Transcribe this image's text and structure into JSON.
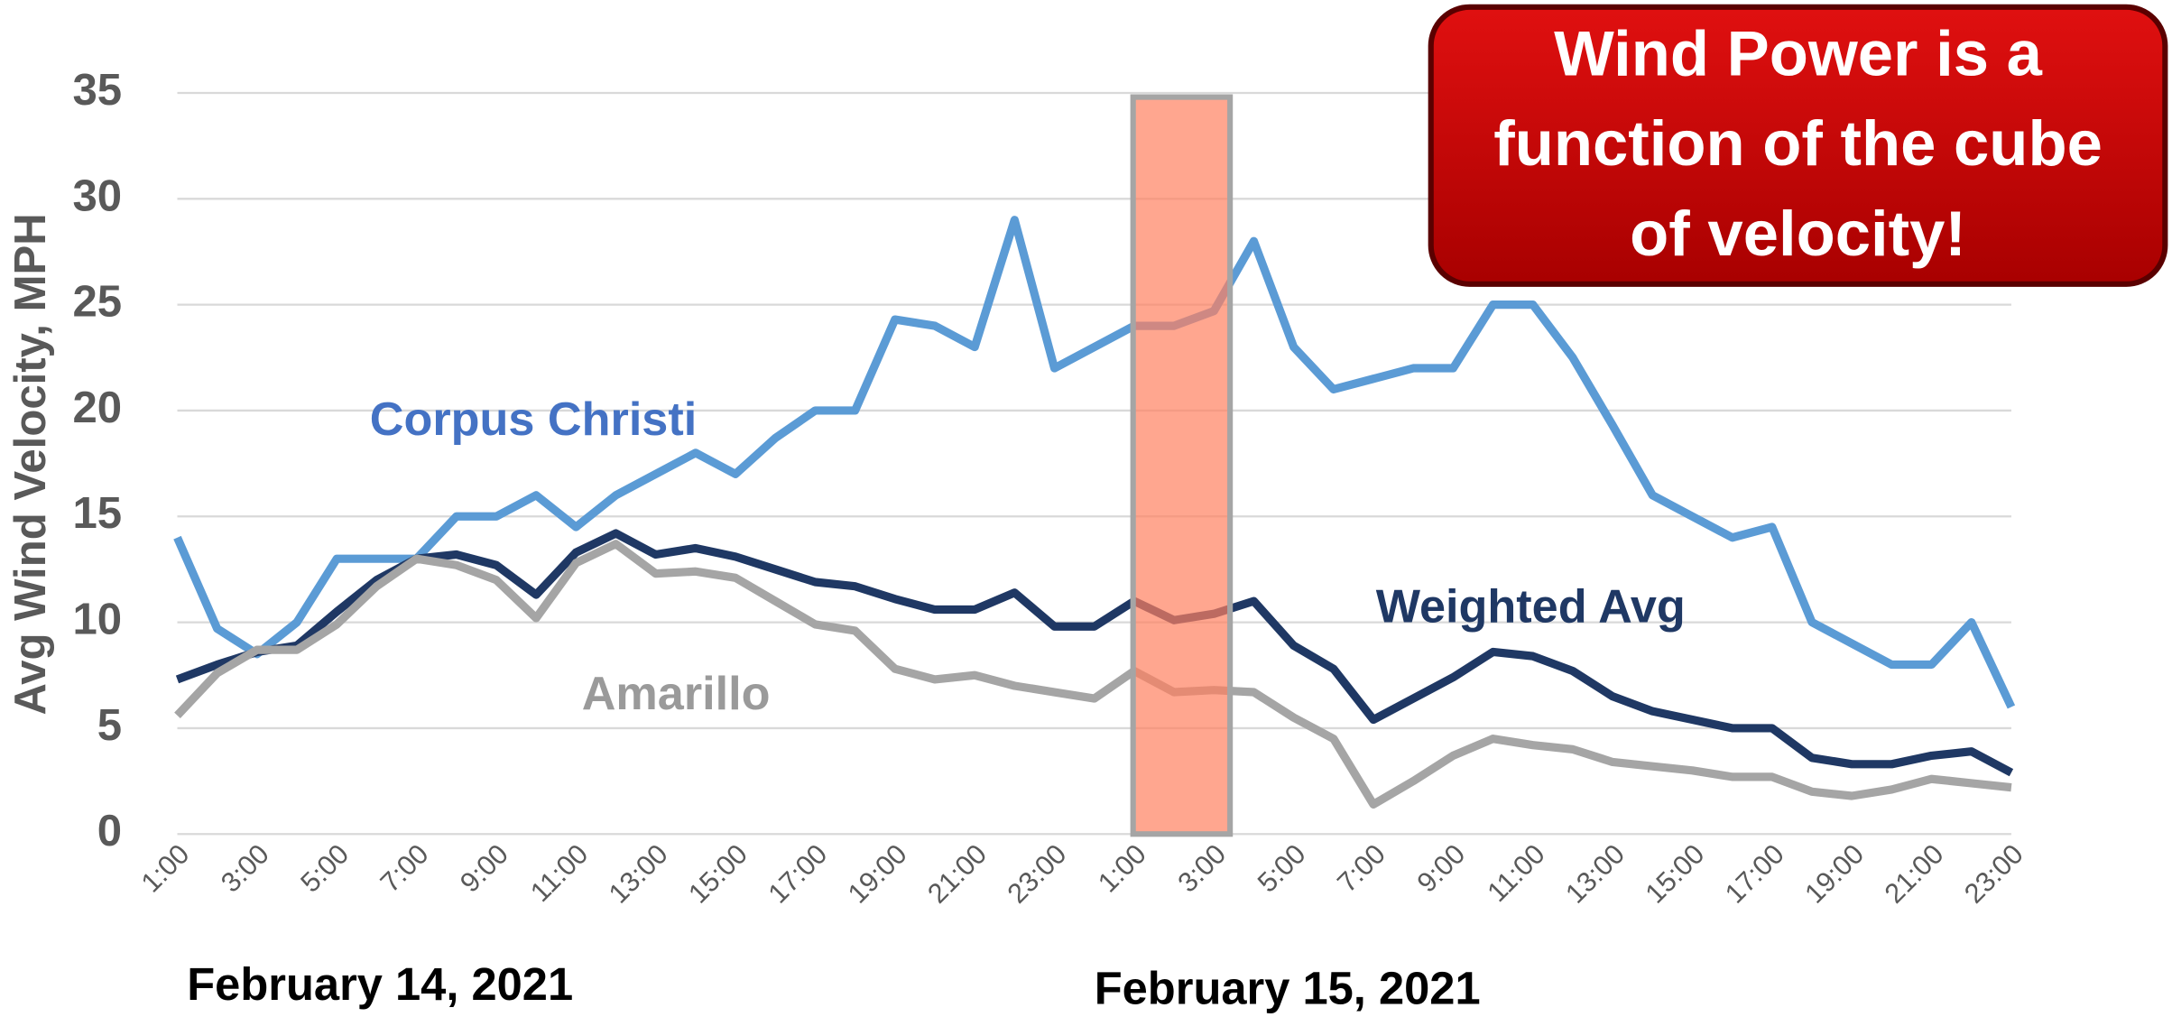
{
  "chart_data": {
    "type": "line",
    "ylabel": "Avg Wind Velocity, MPH",
    "categories": [
      "1:00",
      null,
      "3:00",
      null,
      "5:00",
      null,
      "7:00",
      null,
      "9:00",
      null,
      "11:00",
      null,
      "13:00",
      null,
      "15:00",
      null,
      "17:00",
      null,
      "19:00",
      null,
      "21:00",
      null,
      "23:00",
      null,
      "1:00",
      null,
      "3:00",
      null,
      "5:00",
      null,
      "7:00",
      null,
      "9:00",
      null,
      "11:00",
      null,
      "13:00",
      null,
      "15:00",
      null,
      "17:00",
      null,
      "19:00",
      null,
      "21:00",
      null,
      "23:00"
    ],
    "series": [
      {
        "name": "Corpus Christi",
        "color": "#5b9bd5",
        "label_color": "#4472c4",
        "values": [
          14,
          9.7,
          8.5,
          10,
          13,
          13,
          13,
          15,
          15,
          16,
          14.5,
          16,
          17,
          18,
          17,
          18.7,
          20,
          20,
          24.3,
          24,
          23,
          29,
          22,
          23,
          24,
          24,
          24.7,
          28,
          23,
          21,
          21.5,
          22,
          22,
          25,
          25,
          22.5,
          19.3,
          16,
          15,
          14,
          14.5,
          10,
          9,
          8,
          8,
          10,
          6
        ]
      },
      {
        "name": "Weighted Avg",
        "color": "#1f3864",
        "label_color": "#1f3864",
        "values": [
          7.3,
          8,
          8.6,
          8.9,
          10.5,
          12,
          13,
          13.2,
          12.7,
          11.3,
          13.3,
          14.2,
          13.2,
          13.5,
          13.1,
          12.5,
          11.9,
          11.7,
          11.1,
          10.6,
          10.6,
          11.4,
          9.8,
          9.8,
          11,
          10.1,
          10.4,
          11,
          8.9,
          7.8,
          5.4,
          6.4,
          7.4,
          8.6,
          8.4,
          7.7,
          6.5,
          5.8,
          5.4,
          5,
          5,
          3.6,
          3.3,
          3.3,
          3.7,
          3.9,
          2.9
        ]
      },
      {
        "name": "Amarillo",
        "color": "#a5a5a5",
        "label_color": "#9a9a9a",
        "values": [
          5.6,
          7.6,
          8.7,
          8.7,
          9.9,
          11.7,
          13,
          12.7,
          12,
          10.2,
          12.8,
          13.7,
          12.3,
          12.4,
          12.1,
          11,
          9.9,
          9.6,
          7.8,
          7.3,
          7.5,
          7,
          6.7,
          6.4,
          7.7,
          6.7,
          6.8,
          6.7,
          5.5,
          4.5,
          1.4,
          2.5,
          3.7,
          4.5,
          4.2,
          4,
          3.4,
          3.2,
          3,
          2.7,
          2.7,
          2,
          1.8,
          2.1,
          2.6,
          2.4,
          2.2
        ]
      }
    ],
    "ylim": [
      0,
      35
    ],
    "yticks": [
      0,
      5,
      10,
      15,
      20,
      25,
      30,
      35
    ],
    "grid": true,
    "dates": [
      "February 14, 2021",
      "February 15, 2021"
    ],
    "annotation": [
      "Wind Power is a",
      "function of the cube",
      "of velocity!"
    ]
  }
}
